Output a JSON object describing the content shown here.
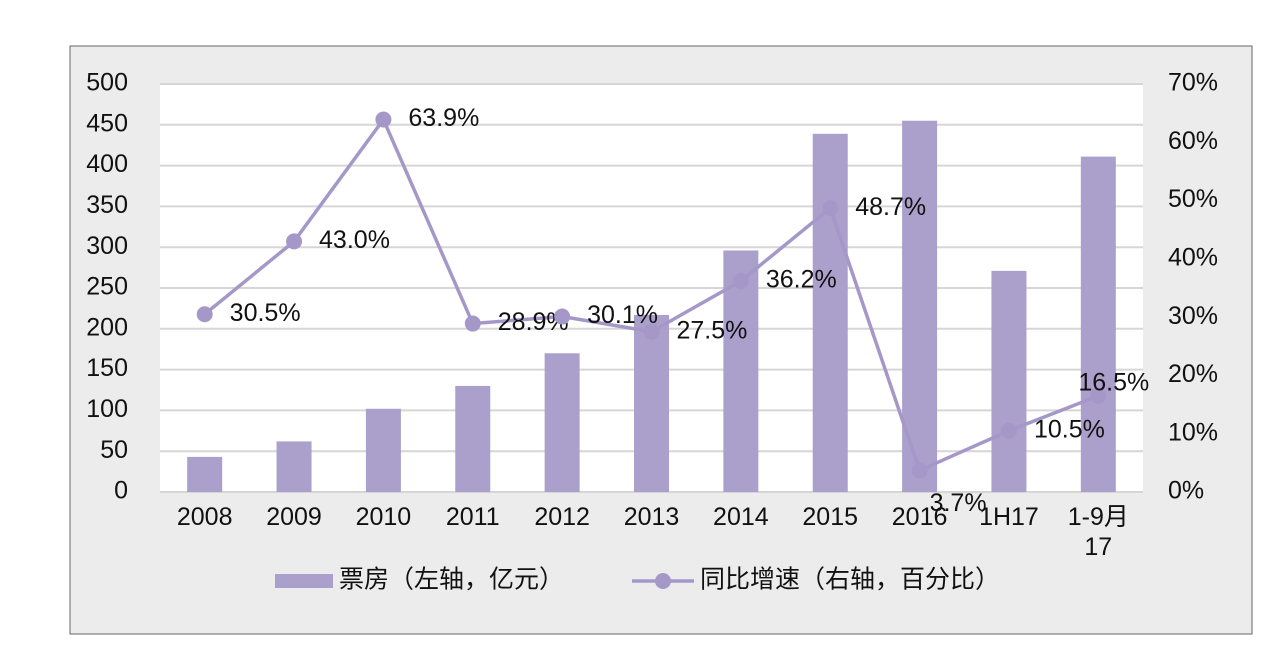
{
  "chart_data": {
    "type": "bar-line",
    "categories": [
      "2008",
      "2009",
      "2010",
      "2011",
      "2012",
      "2013",
      "2014",
      "2015",
      "2016",
      "1H17",
      "1-9月\n17"
    ],
    "series": [
      {
        "name": "票房（左轴，亿元）",
        "color": "#ab9fcb",
        "type": "bar",
        "values": [
          43,
          62,
          102,
          130,
          170,
          217,
          296,
          439,
          455,
          271,
          411
        ]
      },
      {
        "name": "同比增速（右轴，百分比）",
        "color": "#a598c9",
        "type": "line",
        "axis": "y2",
        "values": [
          30.5,
          43.0,
          63.9,
          28.9,
          30.1,
          27.5,
          36.2,
          48.7,
          3.7,
          10.5,
          16.5
        ],
        "value_labels": [
          "30.5%",
          "43.0%",
          "63.9%",
          "28.9%",
          "30.1%",
          "27.5%",
          "36.2%",
          "48.7%",
          "3.7%",
          "10.5%",
          "16.5%"
        ]
      }
    ],
    "ylim": [
      0,
      500
    ],
    "yticks": [
      0,
      50,
      100,
      150,
      200,
      250,
      300,
      350,
      400,
      450,
      500
    ],
    "y2lim": [
      0,
      70
    ],
    "y2ticks": [
      {
        "value": 0,
        "label": "0%"
      },
      {
        "value": 10,
        "label": "10%"
      },
      {
        "value": 20,
        "label": "20%"
      },
      {
        "value": 30,
        "label": "30%"
      },
      {
        "value": 40,
        "label": "40%"
      },
      {
        "value": 50,
        "label": "50%"
      },
      {
        "value": 60,
        "label": "60%"
      },
      {
        "value": 70,
        "label": "70%"
      }
    ],
    "grid": true
  }
}
